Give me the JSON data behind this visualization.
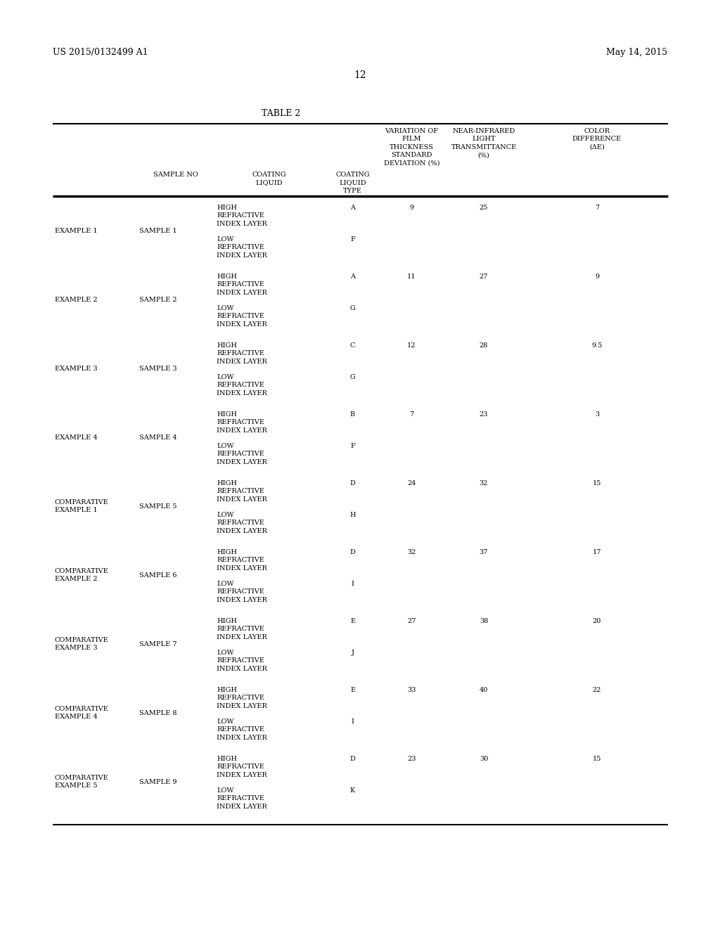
{
  "page_header_left": "US 2015/0132499 A1",
  "page_header_right": "May 14, 2015",
  "page_number": "12",
  "table_title": "TABLE 2",
  "rows": [
    {
      "example": "EXAMPLE 1",
      "sample": "SAMPLE 1",
      "type1": "A",
      "std_dev": "9",
      "transmittance": "25",
      "color_diff": "7",
      "type2": "F"
    },
    {
      "example": "EXAMPLE 2",
      "sample": "SAMPLE 2",
      "type1": "A",
      "std_dev": "11",
      "transmittance": "27",
      "color_diff": "9",
      "type2": "G"
    },
    {
      "example": "EXAMPLE 3",
      "sample": "SAMPLE 3",
      "type1": "C",
      "std_dev": "12",
      "transmittance": "28",
      "color_diff": "9.5",
      "type2": "G"
    },
    {
      "example": "EXAMPLE 4",
      "sample": "SAMPLE 4",
      "type1": "B",
      "std_dev": "7",
      "transmittance": "23",
      "color_diff": "3",
      "type2": "F"
    },
    {
      "example": "COMPARATIVE\nEXAMPLE 1",
      "sample": "SAMPLE 5",
      "type1": "D",
      "std_dev": "24",
      "transmittance": "32",
      "color_diff": "15",
      "type2": "H"
    },
    {
      "example": "COMPARATIVE\nEXAMPLE 2",
      "sample": "SAMPLE 6",
      "type1": "D",
      "std_dev": "32",
      "transmittance": "37",
      "color_diff": "17",
      "type2": "I"
    },
    {
      "example": "COMPARATIVE\nEXAMPLE 3",
      "sample": "SAMPLE 7",
      "type1": "E",
      "std_dev": "27",
      "transmittance": "38",
      "color_diff": "20",
      "type2": "J"
    },
    {
      "example": "COMPARATIVE\nEXAMPLE 4",
      "sample": "SAMPLE 8",
      "type1": "E",
      "std_dev": "33",
      "transmittance": "40",
      "color_diff": "22",
      "type2": "I"
    },
    {
      "example": "COMPARATIVE\nEXAMPLE 5",
      "sample": "SAMPLE 9",
      "type1": "D",
      "std_dev": "23",
      "transmittance": "30",
      "color_diff": "15",
      "type2": "K"
    }
  ],
  "background_color": "#ffffff",
  "text_color": "#000000",
  "font_size": 7.0,
  "header_font_size": 7.0
}
